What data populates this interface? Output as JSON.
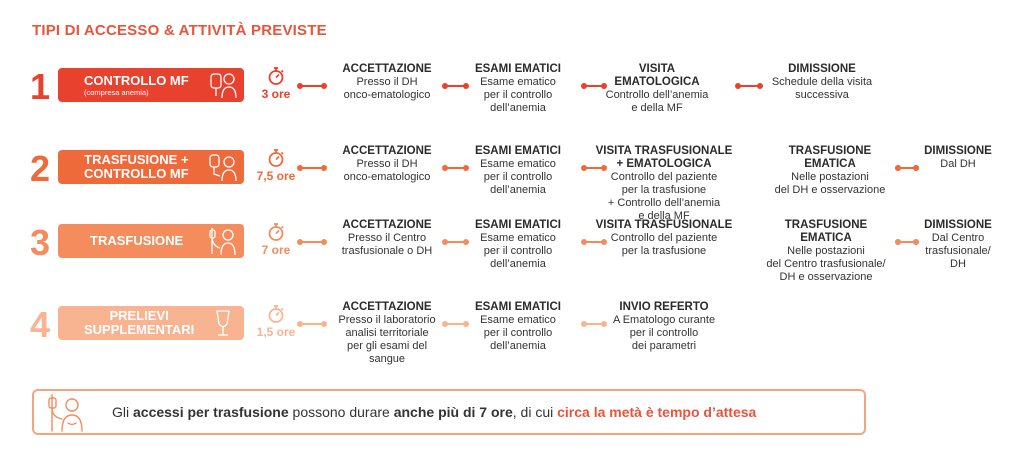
{
  "title": "TIPI DI ACCESSO & ATTIVITÀ PREVISTE",
  "colors": {
    "row1": "#e8412d",
    "row2": "#ef6a3a",
    "row3": "#f48c5e",
    "row4": "#f8b491",
    "text": "#2b2b2b",
    "accent": "#e8553a"
  },
  "rows": [
    {
      "number": "1",
      "label": "CONTROLLO MF",
      "sublabel": "(compresa anemia)",
      "icon": "blood-bag-person-icon",
      "time": "3 ore",
      "steps": [
        {
          "title": "ACCETTAZIONE",
          "desc": "Presso il DH\nonco-ematologico"
        },
        {
          "title": "ESAMI EMATICI",
          "desc": "Esame ematico\nper il controllo\ndell’anemia"
        },
        {
          "title": "VISITA\nEMATOLOGICA",
          "desc": "Controllo dell’anemia\ne della MF"
        },
        {
          "title": "DIMISSIONE",
          "desc": "Schedule della visita\nsuccessiva"
        }
      ]
    },
    {
      "number": "2",
      "label": "TRASFUSIONE +\nCONTROLLO MF",
      "sublabel": "",
      "icon": "transfusion-person-icon",
      "time": "7,5 ore",
      "steps": [
        {
          "title": "ACCETTAZIONE",
          "desc": "Presso il DH\nonco-ematologico"
        },
        {
          "title": "ESAMI EMATICI",
          "desc": "Esame ematico\nper il controllo\ndell’anemia"
        },
        {
          "title": "VISITA TRASFUSIONALE\n+ EMATOLOGICA",
          "desc": "Controllo del paziente\nper la trasfusione\n+ Controllo dell’anemia\ne della MF"
        },
        {
          "title": "TRASFUSIONE\nEMATICA",
          "desc": "Nelle postazioni\ndel DH e osservazione"
        },
        {
          "title": "DIMISSIONE",
          "desc": "Dal DH"
        }
      ]
    },
    {
      "number": "3",
      "label": "TRASFUSIONE",
      "sublabel": "",
      "icon": "iv-drip-person-icon",
      "time": "7 ore",
      "steps": [
        {
          "title": "ACCETTAZIONE",
          "desc": "Presso il Centro\ntrasfusionale o DH"
        },
        {
          "title": "ESAMI EMATICI",
          "desc": "Esame ematico\nper il controllo\ndell’anemia"
        },
        {
          "title": "VISITA TRASFUSIONALE",
          "desc": "Controllo del paziente\nper la trasfusione"
        },
        {
          "title": "TRASFUSIONE\nEMATICA",
          "desc": "Nelle postazioni\ndel Centro trasfusionale/\nDH e osservazione"
        },
        {
          "title": "DIMISSIONE",
          "desc": "Dal Centro\ntrasfusionale/\nDH"
        }
      ]
    },
    {
      "number": "4",
      "label": "PRELIEVI\nSUPPLEMENTARI",
      "sublabel": "",
      "icon": "test-tube-icon",
      "time": "1,5 ore",
      "steps": [
        {
          "title": "ACCETTAZIONE",
          "desc": "Presso il laboratorio\nanalisi territoriale\nper gli esami del sangue"
        },
        {
          "title": "ESAMI EMATICI",
          "desc": "Esame ematico\nper il controllo\ndell’anemia"
        },
        {
          "title": "INVIO REFERTO",
          "desc": "A Ematologo curante\nper il controllo\ndei parametri"
        }
      ]
    }
  ],
  "banner": {
    "icon": "iv-drip-person-icon",
    "p1": "Gli ",
    "b1": "accessi per trasfusione",
    "p2": " possono durare ",
    "b2": "anche più di 7 ore",
    "p3": ", di cui ",
    "hl": "circa la metà è tempo d’attesa"
  }
}
